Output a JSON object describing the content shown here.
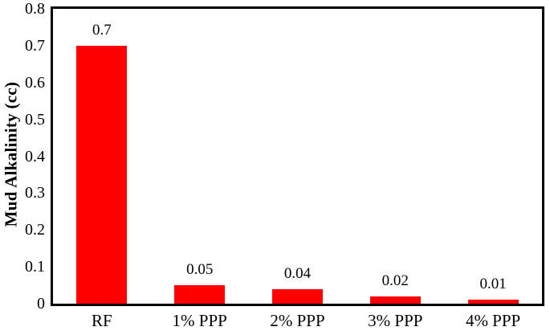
{
  "chart_data": {
    "type": "bar",
    "title": "",
    "xlabel": "",
    "ylabel": "Mud Alkalinity (cc)",
    "categories": [
      "RF",
      "1% PPP",
      "2% PPP",
      "3% PPP",
      "4% PPP"
    ],
    "values": [
      0.7,
      0.05,
      0.04,
      0.02,
      0.01
    ],
    "value_labels": [
      "0.7",
      "0.05",
      "0.04",
      "0.02",
      "0.01"
    ],
    "ylim": [
      0,
      0.8
    ],
    "ytick_values": [
      0,
      0.1,
      0.2,
      0.3,
      0.4,
      0.5,
      0.6,
      0.7,
      0.8
    ],
    "ytick_labels": [
      "0",
      "0.1",
      "0.2",
      "0.3",
      "0.4",
      "0.5",
      "0.6",
      "0.7",
      "0.8"
    ],
    "bar_color": "#ff0000",
    "frame_color": "#000000",
    "text_color": "#000000",
    "background_color": "#ffffff",
    "grid": false,
    "legend": false
  }
}
